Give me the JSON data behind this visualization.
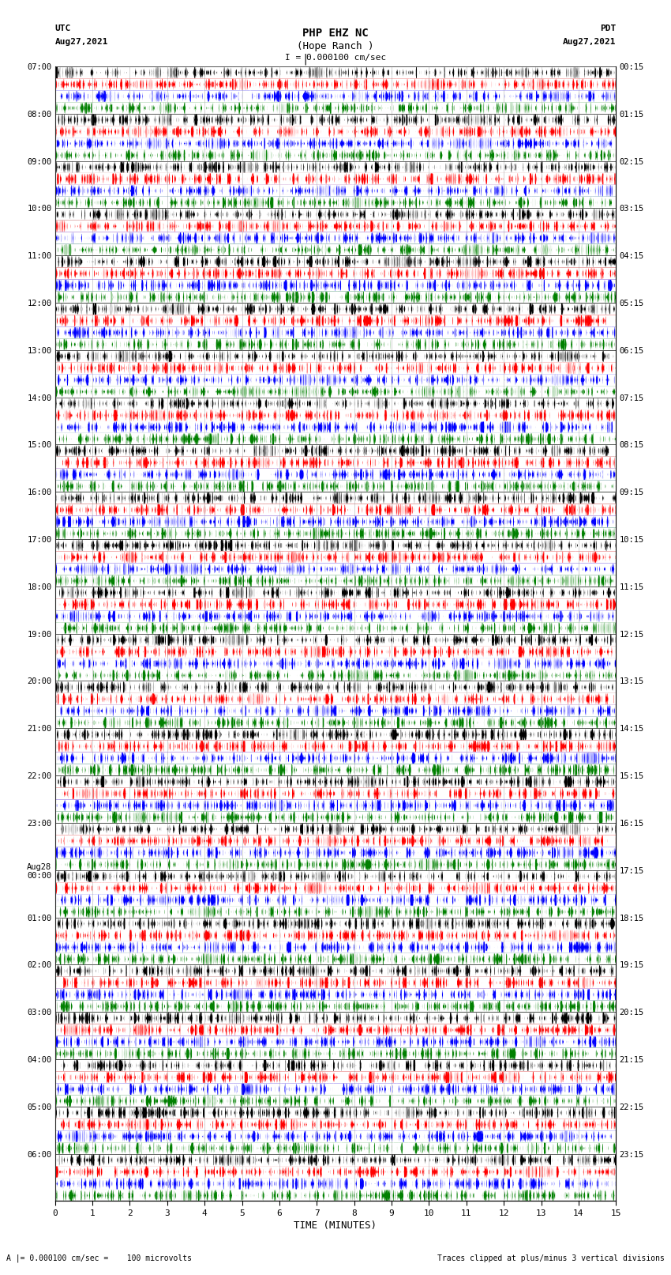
{
  "title_line1": "PHP EHZ NC",
  "title_line2": "(Hope Ranch )",
  "title_line3": "I = 0.000100 cm/sec",
  "utc_label": "UTC",
  "utc_date": "Aug27,2021",
  "pdt_label": "PDT",
  "pdt_date": "Aug27,2021",
  "xlabel": "TIME (MINUTES)",
  "footer_left": "A |= 0.000100 cm/sec =    100 microvolts",
  "footer_right": "Traces clipped at plus/minus 3 vertical divisions",
  "left_times": [
    "07:00",
    "08:00",
    "09:00",
    "10:00",
    "11:00",
    "12:00",
    "13:00",
    "14:00",
    "15:00",
    "16:00",
    "17:00",
    "18:00",
    "19:00",
    "20:00",
    "21:00",
    "22:00",
    "23:00",
    "Aug28\n00:00",
    "01:00",
    "02:00",
    "03:00",
    "04:00",
    "05:00",
    "06:00"
  ],
  "right_times": [
    "00:15",
    "01:15",
    "02:15",
    "03:15",
    "04:15",
    "05:15",
    "06:15",
    "07:15",
    "08:15",
    "09:15",
    "10:15",
    "11:15",
    "12:15",
    "13:15",
    "14:15",
    "15:15",
    "16:15",
    "17:15",
    "18:15",
    "19:15",
    "20:15",
    "21:15",
    "22:15",
    "23:15"
  ],
  "n_rows": 24,
  "n_traces_per_row": 4,
  "minutes": 15,
  "seed": 42
}
